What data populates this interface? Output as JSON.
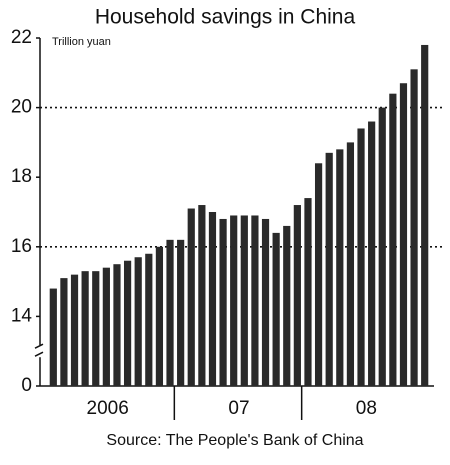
{
  "chart_data": {
    "type": "bar",
    "title": "Household savings in China",
    "unit_label": "Trillion yuan",
    "source": "Source: The People's Bank of China",
    "categories": [
      "2006",
      null,
      null,
      null,
      null,
      null,
      null,
      null,
      null,
      null,
      null,
      null,
      "07",
      null,
      null,
      null,
      null,
      null,
      null,
      null,
      null,
      null,
      null,
      null,
      "08",
      null,
      null,
      null,
      null,
      null,
      null,
      null,
      null,
      null,
      null,
      null
    ],
    "values": [
      14.8,
      15.1,
      15.2,
      15.3,
      15.3,
      15.4,
      15.5,
      15.6,
      15.7,
      15.8,
      16.0,
      16.2,
      16.2,
      17.1,
      17.2,
      17.0,
      16.8,
      16.9,
      16.9,
      16.9,
      16.8,
      16.4,
      16.6,
      17.2,
      17.4,
      18.4,
      18.7,
      18.8,
      19.0,
      19.4,
      19.6,
      20.0,
      20.4,
      20.7,
      21.1,
      21.8
    ],
    "color": "#2a2a2a",
    "ylim": [
      0,
      22
    ],
    "yticks": [
      0,
      14,
      16,
      18,
      20,
      22
    ],
    "axis_break": true,
    "gridlines": [
      16,
      20
    ]
  }
}
